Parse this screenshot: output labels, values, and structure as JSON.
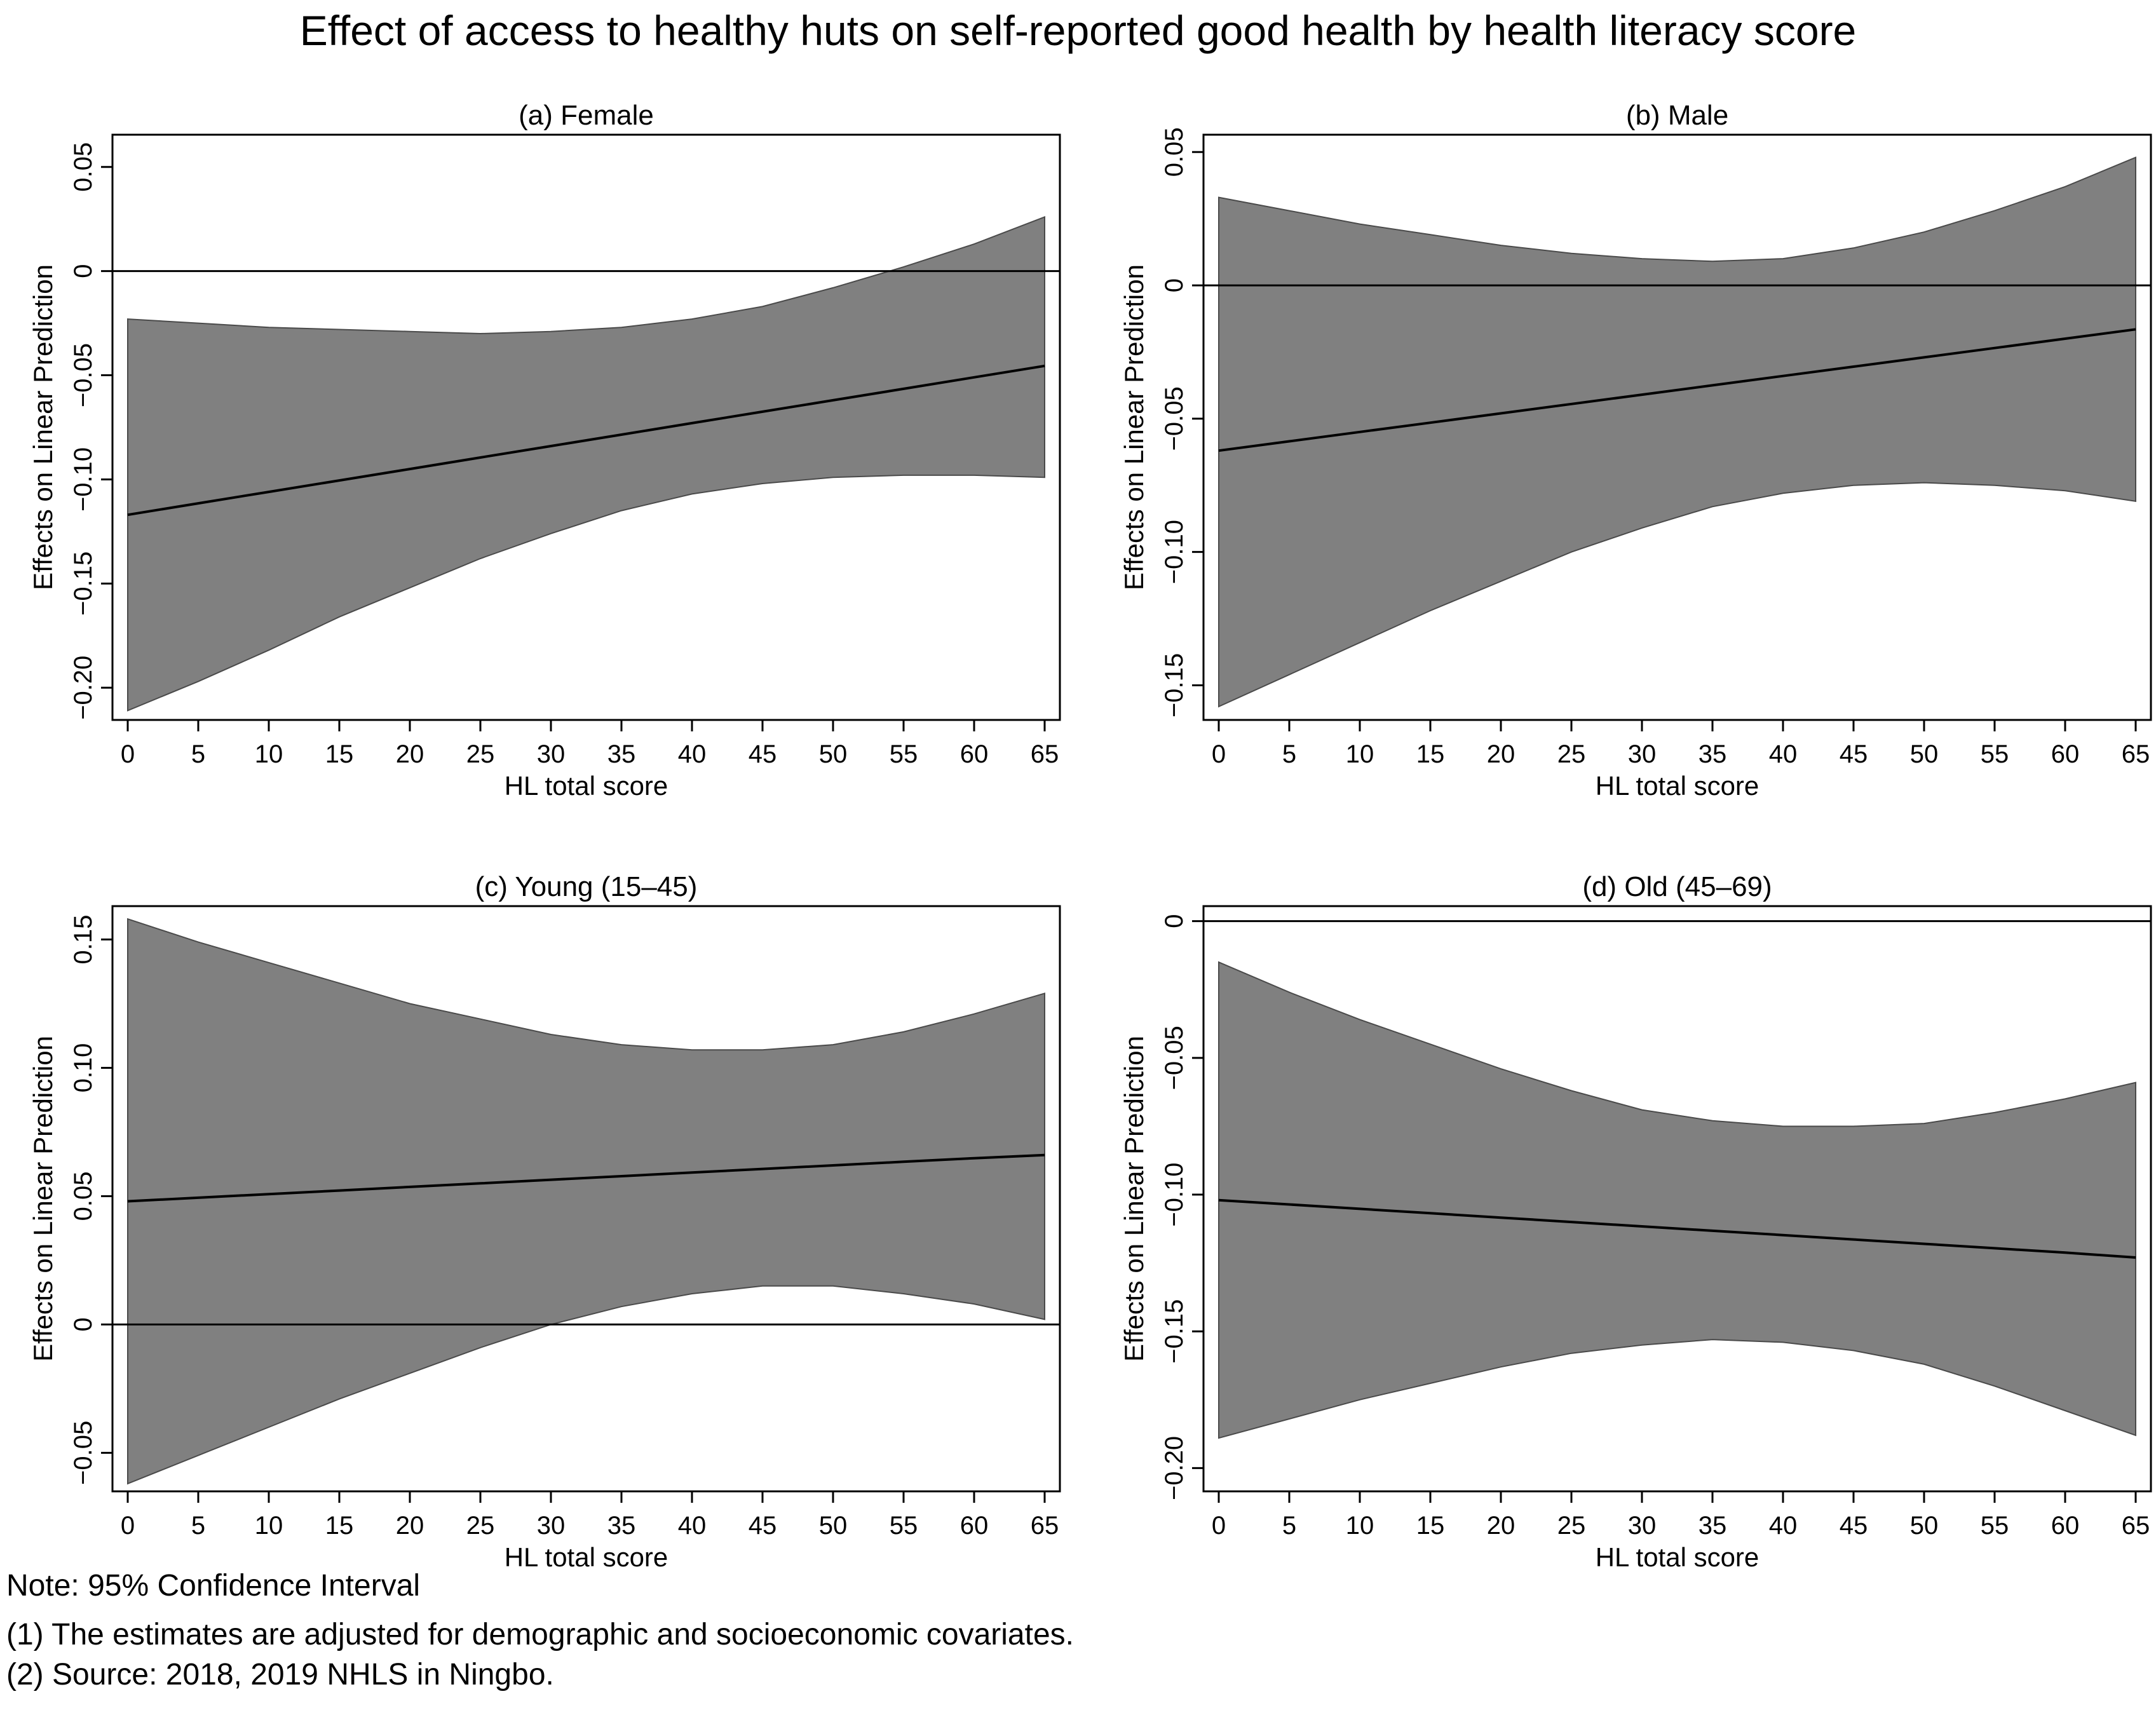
{
  "title": "Effect of access to healthy huts on self-reported good health by health literacy score",
  "notes": {
    "note": "Note: 95% Confidence Interval",
    "line1": "(1) The estimates are adjusted for demographic and socioeconomic covariates.",
    "line2": "(2) Source: 2018, 2019 NHLS in Ningbo."
  },
  "colors": {
    "band": "#808080",
    "line": "#000000",
    "frame": "#000000"
  },
  "chart_data": [
    {
      "type": "line",
      "title": "(a) Female",
      "xlabel": "HL total score",
      "ylabel": "Effects on Linear Prediction",
      "x": [
        0,
        5,
        10,
        15,
        20,
        25,
        30,
        35,
        40,
        45,
        50,
        55,
        60,
        65
      ],
      "xticks": [
        0,
        5,
        10,
        15,
        20,
        25,
        30,
        35,
        40,
        45,
        50,
        55,
        60,
        65
      ],
      "xtick_labels": [
        "0",
        "5",
        "10",
        "15",
        "20",
        "25",
        "30",
        "35",
        "40",
        "45",
        "50",
        "55",
        "60",
        "65"
      ],
      "yticks": [
        -0.2,
        -0.15,
        -0.1,
        -0.05,
        0,
        0.05
      ],
      "ytick_labels": [
        "−0.20",
        "−0.15",
        "−0.10",
        "−0.05",
        "0",
        "0.05"
      ],
      "ylim": [
        -0.2155,
        0.0655
      ],
      "reference_line": 0,
      "series": [
        {
          "name": "estimate",
          "values": [
            -0.117,
            -0.1115,
            -0.106,
            -0.1005,
            -0.095,
            -0.0895,
            -0.084,
            -0.0785,
            -0.073,
            -0.0675,
            -0.062,
            -0.0565,
            -0.051,
            -0.0455
          ]
        },
        {
          "name": "ci_upper",
          "values": [
            -0.023,
            -0.025,
            -0.027,
            -0.028,
            -0.029,
            -0.03,
            -0.029,
            -0.027,
            -0.023,
            -0.017,
            -0.008,
            0.002,
            0.013,
            0.026
          ]
        },
        {
          "name": "ci_lower",
          "values": [
            -0.211,
            -0.197,
            -0.182,
            -0.166,
            -0.152,
            -0.138,
            -0.126,
            -0.115,
            -0.107,
            -0.102,
            -0.099,
            -0.098,
            -0.098,
            -0.099
          ]
        }
      ]
    },
    {
      "type": "line",
      "title": "(b) Male",
      "xlabel": "HL total score",
      "ylabel": "Effects on Linear Prediction",
      "x": [
        0,
        5,
        10,
        15,
        20,
        25,
        30,
        35,
        40,
        45,
        50,
        55,
        60,
        65
      ],
      "xticks": [
        0,
        5,
        10,
        15,
        20,
        25,
        30,
        35,
        40,
        45,
        50,
        55,
        60,
        65
      ],
      "xtick_labels": [
        "0",
        "5",
        "10",
        "15",
        "20",
        "25",
        "30",
        "35",
        "40",
        "45",
        "50",
        "55",
        "60",
        "65"
      ],
      "yticks": [
        -0.15,
        -0.1,
        -0.05,
        0,
        0.05
      ],
      "ytick_labels": [
        "−0.15",
        "−0.10",
        "−0.05",
        "0",
        "0.05"
      ],
      "ylim": [
        -0.163,
        0.0565
      ],
      "reference_line": 0,
      "series": [
        {
          "name": "estimate",
          "values": [
            -0.062,
            -0.0585,
            -0.055,
            -0.0515,
            -0.048,
            -0.0445,
            -0.041,
            -0.0375,
            -0.034,
            -0.0305,
            -0.027,
            -0.0235,
            -0.02,
            -0.0165
          ]
        },
        {
          "name": "ci_upper",
          "values": [
            0.033,
            0.028,
            0.023,
            0.019,
            0.015,
            0.012,
            0.01,
            0.009,
            0.01,
            0.014,
            0.02,
            0.028,
            0.037,
            0.048
          ]
        },
        {
          "name": "ci_lower",
          "values": [
            -0.158,
            -0.146,
            -0.134,
            -0.122,
            -0.111,
            -0.1,
            -0.091,
            -0.083,
            -0.078,
            -0.075,
            -0.074,
            -0.075,
            -0.077,
            -0.081
          ]
        }
      ]
    },
    {
      "type": "line",
      "title": "(c) Young (15–45)",
      "xlabel": "HL total score",
      "ylabel": "Effects on Linear Prediction",
      "x": [
        0,
        5,
        10,
        15,
        20,
        25,
        30,
        35,
        40,
        45,
        50,
        55,
        60,
        65
      ],
      "xticks": [
        0,
        5,
        10,
        15,
        20,
        25,
        30,
        35,
        40,
        45,
        50,
        55,
        60,
        65
      ],
      "xtick_labels": [
        "0",
        "5",
        "10",
        "15",
        "20",
        "25",
        "30",
        "35",
        "40",
        "45",
        "50",
        "55",
        "60",
        "65"
      ],
      "yticks": [
        -0.05,
        0,
        0.05,
        0.1,
        0.15
      ],
      "ytick_labels": [
        "−0.05",
        "0",
        "0.05",
        "0.10",
        "0.15"
      ],
      "ylim": [
        -0.065,
        0.163
      ],
      "reference_line": 0,
      "series": [
        {
          "name": "estimate",
          "values": [
            0.048,
            0.0494,
            0.0508,
            0.0522,
            0.0536,
            0.055,
            0.0564,
            0.0578,
            0.0592,
            0.0606,
            0.062,
            0.0634,
            0.0648,
            0.066
          ]
        },
        {
          "name": "ci_upper",
          "values": [
            0.158,
            0.149,
            0.141,
            0.133,
            0.125,
            0.119,
            0.113,
            0.109,
            0.107,
            0.107,
            0.109,
            0.114,
            0.121,
            0.129
          ]
        },
        {
          "name": "ci_lower",
          "values": [
            -0.062,
            -0.051,
            -0.04,
            -0.029,
            -0.019,
            -0.009,
            0.0,
            0.007,
            0.012,
            0.015,
            0.015,
            0.012,
            0.008,
            0.002
          ]
        }
      ]
    },
    {
      "type": "line",
      "title": "(d) Old (45–69)",
      "xlabel": "HL total score",
      "ylabel": "Effects on Linear Prediction",
      "x": [
        0,
        5,
        10,
        15,
        20,
        25,
        30,
        35,
        40,
        45,
        50,
        55,
        60,
        65
      ],
      "xticks": [
        0,
        5,
        10,
        15,
        20,
        25,
        30,
        35,
        40,
        45,
        50,
        55,
        60,
        65
      ],
      "xtick_labels": [
        "0",
        "5",
        "10",
        "15",
        "20",
        "25",
        "30",
        "35",
        "40",
        "45",
        "50",
        "55",
        "60",
        "65"
      ],
      "yticks": [
        -0.2,
        -0.15,
        -0.1,
        -0.05,
        0
      ],
      "ytick_labels": [
        "−0.20",
        "−0.15",
        "−0.10",
        "−0.05",
        "0"
      ],
      "ylim": [
        -0.2085,
        0.0055
      ],
      "reference_line": 0,
      "series": [
        {
          "name": "estimate",
          "values": [
            -0.102,
            -0.1036,
            -0.1052,
            -0.1068,
            -0.1084,
            -0.11,
            -0.1116,
            -0.1132,
            -0.1148,
            -0.1164,
            -0.118,
            -0.1196,
            -0.1212,
            -0.123
          ]
        },
        {
          "name": "ci_upper",
          "values": [
            -0.015,
            -0.026,
            -0.036,
            -0.045,
            -0.054,
            -0.062,
            -0.069,
            -0.073,
            -0.075,
            -0.075,
            -0.074,
            -0.07,
            -0.065,
            -0.059
          ]
        },
        {
          "name": "ci_lower",
          "values": [
            -0.189,
            -0.182,
            -0.175,
            -0.169,
            -0.163,
            -0.158,
            -0.155,
            -0.153,
            -0.154,
            -0.157,
            -0.162,
            -0.17,
            -0.179,
            -0.188
          ]
        }
      ]
    }
  ]
}
